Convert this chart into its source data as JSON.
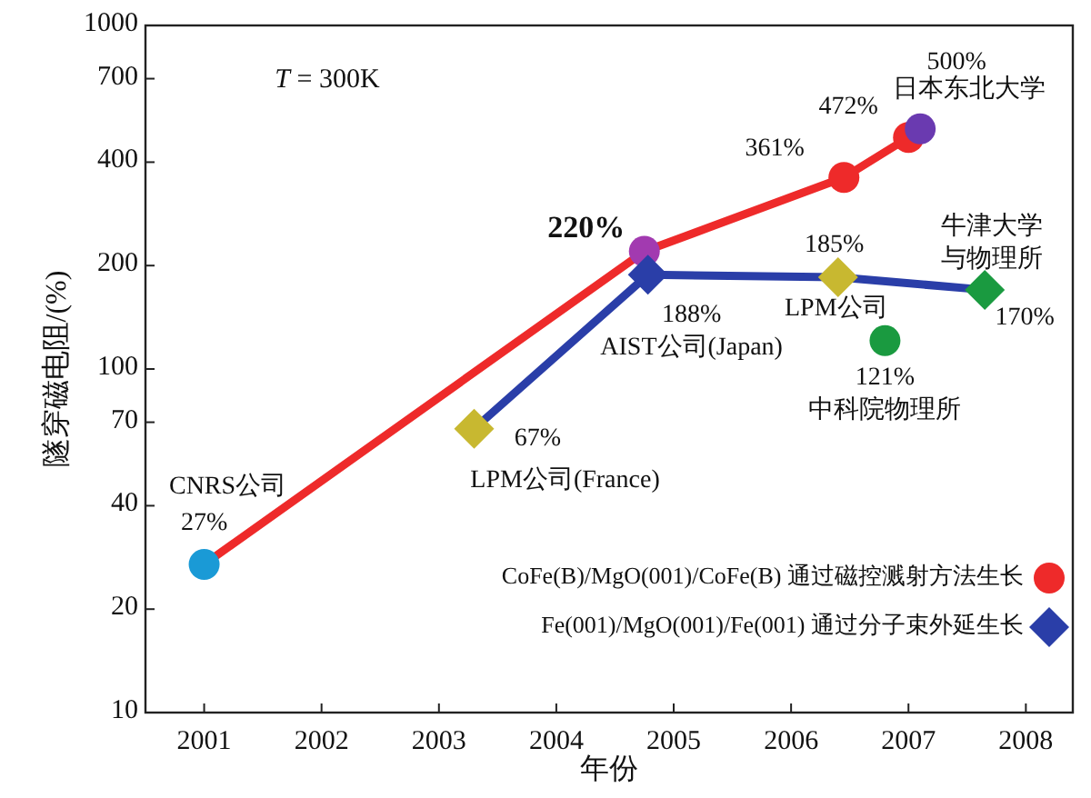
{
  "chart_data": {
    "type": "line",
    "xlabel": "年份",
    "ylabel": "隧穿磁电阻/(%)",
    "log": "y",
    "xlim": [
      2000.5,
      2008.4
    ],
    "xticks": [
      2001,
      2002,
      2003,
      2004,
      2005,
      2006,
      2007,
      2008
    ],
    "ylim": [
      10,
      1000
    ],
    "yticks": [
      10,
      20,
      40,
      70,
      100,
      200,
      400,
      700,
      1000
    ],
    "grid": false,
    "legend": "bottom right",
    "line_style": "solid",
    "series": [
      {
        "name": "CoFe(B)/MgO(001)/CoFe(B) 通过磁控溅射方法生长",
        "marker": "circle",
        "color": "#ee2a2a",
        "x": [
          2001.0,
          2004.75,
          2006.45,
          2007.0
        ],
        "values": [
          27,
          220,
          361,
          472
        ],
        "colors": [
          "#1a9ad6",
          "#a23ab0",
          "#ee2a2a",
          "#ee2a2a"
        ],
        "value_labels": [
          "27%",
          "220%",
          "361%",
          "472%"
        ]
      },
      {
        "name": "Fe(001)/MgO(001)/Fe(001)  通过分子束外延生长",
        "marker": "diamond",
        "color": "#2a3ea8",
        "x": [
          2003.3,
          2004.78,
          2006.4,
          2007.65
        ],
        "values": [
          67,
          188,
          185,
          170
        ],
        "colors": [
          "#c8b830",
          "#2a3ea8",
          "#c8b830",
          "#1a9a40"
        ],
        "value_labels": [
          "67%",
          "188%",
          "185%",
          "170%"
        ]
      },
      {
        "type": "scatter",
        "marker": "circle",
        "color": "#1a9a40",
        "x": [
          2006.8
        ],
        "values": [
          121
        ],
        "value_labels": [
          "121%"
        ]
      },
      {
        "type": "scatter",
        "marker": "circle",
        "color": "#6a3ab0",
        "x": [
          2007.1
        ],
        "values": [
          500
        ],
        "value_labels": [
          "500%"
        ]
      }
    ],
    "annotations": [
      "*T* = 300K",
      {
        "text": "CNRS公司",
        "x": 2001.0,
        "y": 27
      },
      {
        "text": "LPM公司(France)",
        "x": 2003.3,
        "y": 67
      },
      {
        "text": "AIST公司(Japan)",
        "x": 2004.78,
        "y": 188
      },
      {
        "text": "LPM公司",
        "x": 2006.4,
        "y": 185
      },
      {
        "text": "牛津大学与物理所",
        "x": 2007.65,
        "y": 170
      },
      {
        "text": "中科院物理所",
        "x": 2006.8,
        "y": 121
      },
      {
        "text": "日本东北大学",
        "x": 2007.1,
        "y": 500
      }
    ]
  }
}
